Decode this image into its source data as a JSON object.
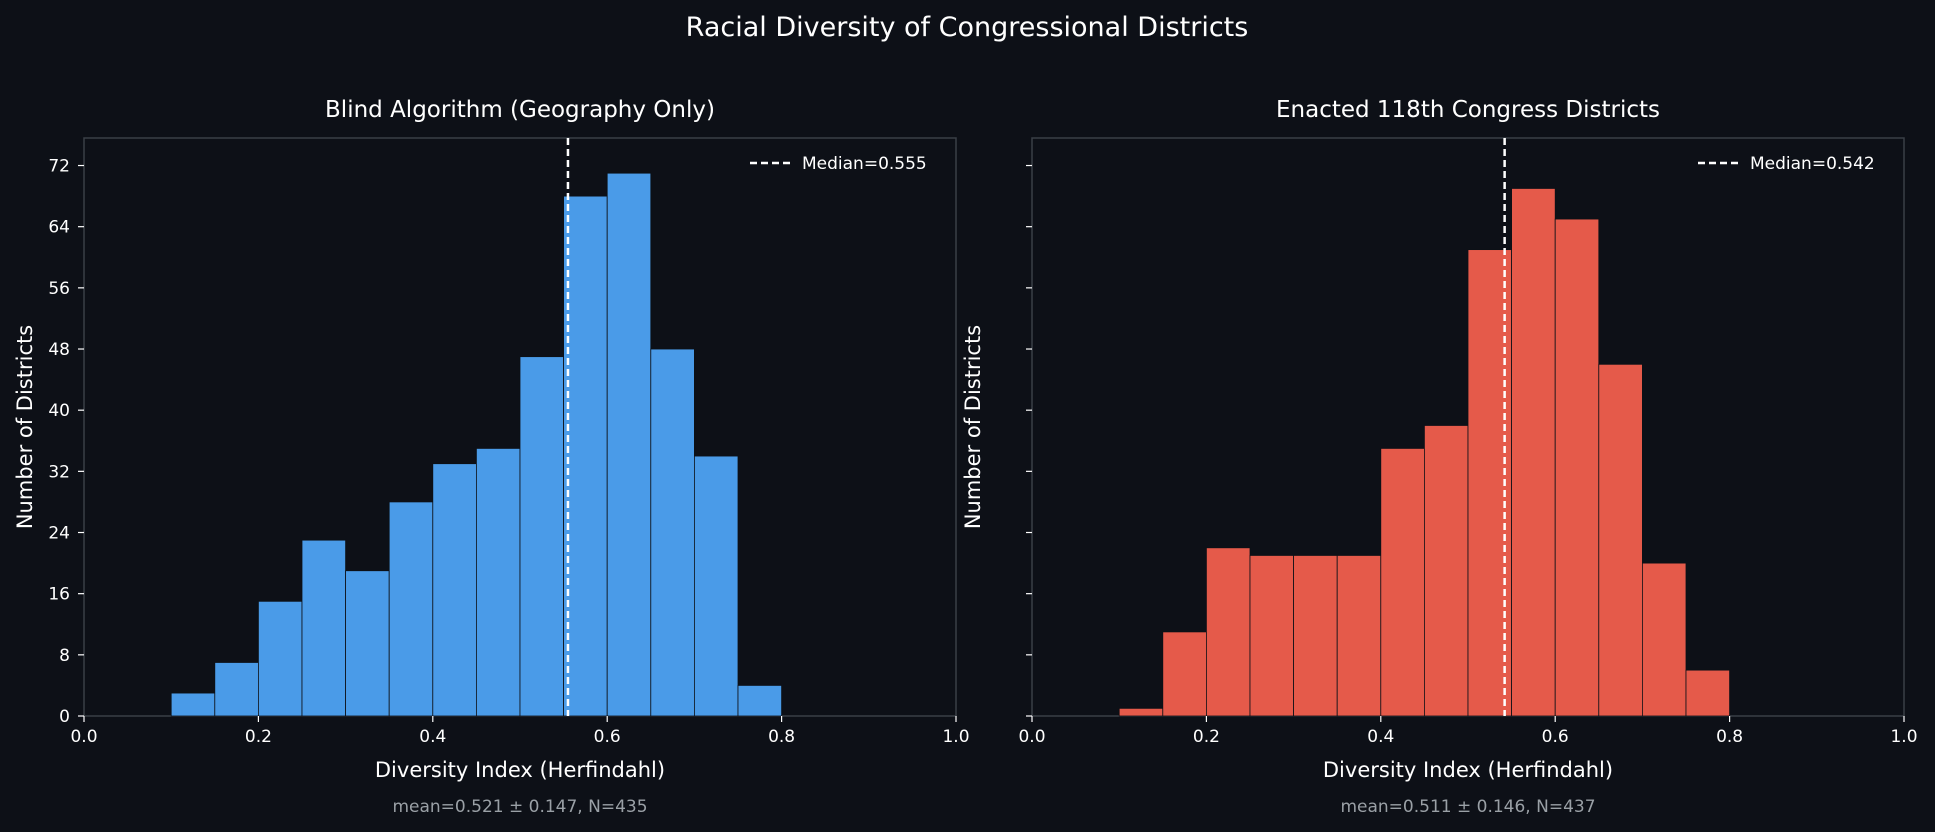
{
  "suptitle": "Racial Diversity of Congressional Districts",
  "chart_data": [
    {
      "type": "bar",
      "title": "Blind Algorithm (Geography Only)",
      "xlabel": "Diversity Index (Herfindahl)",
      "ylabel": "Number of Districts",
      "xlim": [
        0.0,
        1.0
      ],
      "ylim": [
        0,
        75.6
      ],
      "xticks": [
        "0.0",
        "0.2",
        "0.4",
        "0.6",
        "0.8",
        "1.0"
      ],
      "yticks": [
        "0",
        "8",
        "16",
        "24",
        "32",
        "40",
        "48",
        "56",
        "64",
        "72"
      ],
      "bin_edges": [
        0.1,
        0.15,
        0.2,
        0.25,
        0.3,
        0.35,
        0.4,
        0.45,
        0.5,
        0.55,
        0.6,
        0.65,
        0.7,
        0.75,
        0.8
      ],
      "counts": [
        3,
        7,
        15,
        23,
        19,
        28,
        33,
        35,
        47,
        68,
        71,
        48,
        34,
        4
      ],
      "bar_color": "#4a9be8",
      "median": 0.555,
      "legend": "Median=0.555",
      "legend_position": "top-right",
      "stats": "mean=0.521 ± 0.147,  N=435",
      "grid": false
    },
    {
      "type": "bar",
      "title": "Enacted 118th Congress Districts",
      "xlabel": "Diversity Index (Herfindahl)",
      "ylabel": "Number of Districts",
      "xlim": [
        0.0,
        1.0
      ],
      "ylim": [
        0,
        75.6
      ],
      "xticks": [
        "0.0",
        "0.2",
        "0.4",
        "0.6",
        "0.8",
        "1.0"
      ],
      "yticks": [],
      "bin_edges": [
        0.1,
        0.15,
        0.2,
        0.25,
        0.3,
        0.35,
        0.4,
        0.45,
        0.5,
        0.55,
        0.6,
        0.65,
        0.7,
        0.75,
        0.8
      ],
      "counts": [
        1,
        11,
        22,
        21,
        21,
        21,
        35,
        38,
        61,
        69,
        65,
        46,
        20,
        6
      ],
      "bar_color": "#e55a4a",
      "median": 0.542,
      "legend": "Median=0.542",
      "legend_position": "top-right",
      "stats": "mean=0.511 ± 0.146,  N=437",
      "grid": false
    }
  ]
}
